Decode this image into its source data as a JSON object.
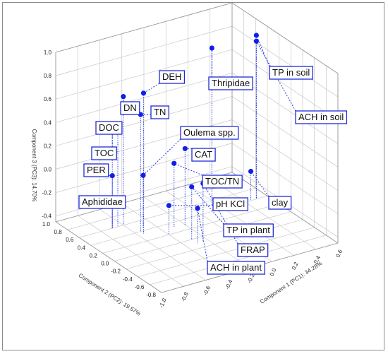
{
  "chart_data": {
    "type": "scatter",
    "x_axis": {
      "label": "Component 1 (PC1): 34.28%",
      "ticks": [
        "-1.0",
        "-0.8",
        "-0.6",
        "-0.4",
        "-0.2",
        "0.0",
        "0.2",
        "0.4",
        "0.6"
      ]
    },
    "y_axis": {
      "label": "Component 2 (PC2): 19.57%",
      "ticks": [
        "1.0",
        "0.8",
        "0.6",
        "0.4",
        "0.2",
        "0.0",
        "-0.2",
        "-0.4",
        "-0.6",
        "-0.8"
      ]
    },
    "z_axis": {
      "label": "Component 3 (PC3): 14.70%",
      "ticks": [
        "1.0",
        "0.8",
        "0.6",
        "0.4",
        "0.2",
        "0.0",
        "-0.2",
        "-0.4"
      ]
    },
    "points": [
      {
        "label": "DEH",
        "x": -0.55,
        "y": 0.35,
        "z": 0.75
      },
      {
        "label": "Thripidae",
        "x": 0.15,
        "y": 0.5,
        "z": 0.9
      },
      {
        "label": "TP in soil",
        "x": 0.5,
        "y": 0.4,
        "z": 0.95
      },
      {
        "label": "ACH in soil",
        "x": 0.5,
        "y": 0.4,
        "z": 0.9
      },
      {
        "label": "DN",
        "x": -0.6,
        "y": 0.6,
        "z": 0.65
      },
      {
        "label": "TN",
        "x": -0.55,
        "y": 0.4,
        "z": 0.55
      },
      {
        "label": "DOC",
        "x": -0.65,
        "y": 0.6,
        "z": 0.4
      },
      {
        "label": "Oulema spp.",
        "x": -0.5,
        "y": 0.45,
        "z": 0.0
      },
      {
        "label": "TOC",
        "x": -0.7,
        "y": 0.6,
        "z": 0.4
      },
      {
        "label": "CAT",
        "x": -0.2,
        "y": 0.3,
        "z": 0.2
      },
      {
        "label": "PER",
        "x": -0.7,
        "y": 0.6,
        "z": 0.0
      },
      {
        "label": "TOC/TN",
        "x": -0.3,
        "y": 0.3,
        "z": 0.1
      },
      {
        "label": "Aphididae",
        "x": -0.7,
        "y": 0.6,
        "z": -0.2
      },
      {
        "label": "pH KCl",
        "x": -0.4,
        "y": 0.2,
        "z": -0.2
      },
      {
        "label": "clay",
        "x": 0.45,
        "y": 0.4,
        "z": -0.2
      },
      {
        "label": "TP in plant",
        "x": -0.3,
        "y": 0.0,
        "z": 0.0
      },
      {
        "label": "FRAP",
        "x": -0.25,
        "y": -0.1,
        "z": 0.05
      },
      {
        "label": "ACH in plant",
        "x": -0.3,
        "y": -0.1,
        "z": -0.15
      }
    ]
  }
}
